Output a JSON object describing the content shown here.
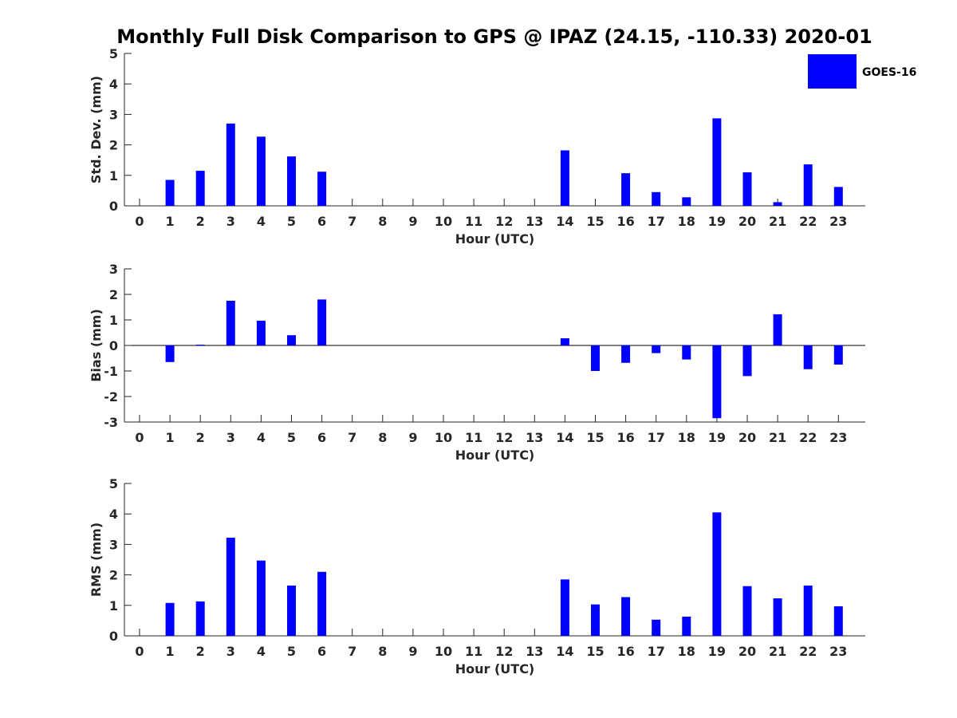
{
  "title": "Monthly Full Disk Comparison to GPS @ IPAZ (24.15, -110.33) 2020-01",
  "legend": {
    "label": "GOES-16",
    "color": "#0000FF",
    "position": "top-right"
  },
  "chart_data": [
    {
      "type": "bar",
      "name": "std-dev",
      "ylabel": "Std. Dev. (mm)",
      "xlabel": "Hour (UTC)",
      "ylim": [
        0,
        5
      ],
      "yticks": [
        0,
        1,
        2,
        3,
        4,
        5
      ],
      "categories": [
        "0",
        "1",
        "2",
        "3",
        "4",
        "5",
        "6",
        "7",
        "8",
        "9",
        "10",
        "11",
        "12",
        "13",
        "14",
        "15",
        "16",
        "17",
        "18",
        "19",
        "20",
        "21",
        "22",
        "23"
      ],
      "series": [
        {
          "name": "GOES-16",
          "values": [
            null,
            0.85,
            1.15,
            2.7,
            2.27,
            1.62,
            1.12,
            null,
            null,
            null,
            null,
            null,
            null,
            null,
            1.82,
            null,
            1.07,
            0.45,
            0.28,
            2.87,
            1.1,
            0.12,
            1.36,
            0.62
          ]
        }
      ]
    },
    {
      "type": "bar",
      "name": "bias",
      "ylabel": "Bias (mm)",
      "xlabel": "Hour (UTC)",
      "ylim": [
        -3,
        3
      ],
      "yticks": [
        -3,
        -2,
        -1,
        0,
        1,
        2,
        3
      ],
      "zeroline": true,
      "categories": [
        "0",
        "1",
        "2",
        "3",
        "4",
        "5",
        "6",
        "7",
        "8",
        "9",
        "10",
        "11",
        "12",
        "13",
        "14",
        "15",
        "16",
        "17",
        "18",
        "19",
        "20",
        "21",
        "22",
        "23"
      ],
      "series": [
        {
          "name": "GOES-16",
          "values": [
            null,
            -0.65,
            0.03,
            1.75,
            0.97,
            0.4,
            1.8,
            null,
            null,
            null,
            null,
            null,
            null,
            null,
            0.28,
            -1.0,
            -0.68,
            -0.3,
            -0.55,
            -2.85,
            -1.2,
            1.22,
            -0.93,
            -0.75
          ]
        }
      ]
    },
    {
      "type": "bar",
      "name": "rms",
      "ylabel": "RMS (mm)",
      "xlabel": "Hour (UTC)",
      "ylim": [
        0,
        5
      ],
      "yticks": [
        0,
        1,
        2,
        3,
        4,
        5
      ],
      "categories": [
        "0",
        "1",
        "2",
        "3",
        "4",
        "5",
        "6",
        "7",
        "8",
        "9",
        "10",
        "11",
        "12",
        "13",
        "14",
        "15",
        "16",
        "17",
        "18",
        "19",
        "20",
        "21",
        "22",
        "23"
      ],
      "series": [
        {
          "name": "GOES-16",
          "values": [
            null,
            1.08,
            1.13,
            3.22,
            2.47,
            1.65,
            2.1,
            null,
            null,
            null,
            null,
            null,
            null,
            null,
            1.85,
            1.03,
            1.27,
            0.53,
            0.63,
            4.05,
            1.63,
            1.23,
            1.65,
            0.97
          ]
        }
      ]
    }
  ]
}
